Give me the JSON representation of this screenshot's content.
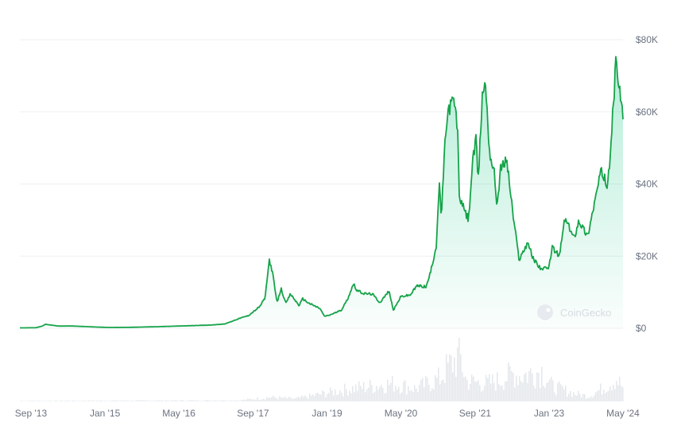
{
  "watermark": {
    "text": "CoinGecko",
    "icon": "gecko-logo-icon"
  },
  "colors": {
    "line": "#16a34a",
    "area_top": "#16c784",
    "grid": "#eceff3",
    "tick_text": "#6b7280",
    "volume": "#e5e8ec"
  },
  "chart_data": {
    "type": "area",
    "title": "",
    "xlabel": "",
    "ylabel": "",
    "grid": true,
    "y_axis_side": "right",
    "x_range": [
      "2013-06-20",
      "2024-05-01"
    ],
    "ylim": [
      0,
      80000
    ],
    "y_ticks": [
      0,
      20000,
      40000,
      60000,
      80000
    ],
    "y_tick_labels": [
      "$0",
      "$20K",
      "$40K",
      "$60K",
      "$80K"
    ],
    "x_ticks": [
      "2013-09-01",
      "2015-01-01",
      "2016-05-01",
      "2017-09-01",
      "2019-01-01",
      "2020-05-01",
      "2021-09-01",
      "2023-01-01",
      "2024-05-01"
    ],
    "x_tick_labels": [
      "Sep '13",
      "Jan '15",
      "May '16",
      "Sep '17",
      "Jan '19",
      "May '20",
      "Sep '21",
      "Jan '23",
      "May '24"
    ],
    "series": [
      {
        "values": [
          [
            "2013-06-20",
            110
          ],
          [
            "2013-10-01",
            130
          ],
          [
            "2013-11-15",
            600
          ],
          [
            "2013-12-05",
            1100
          ],
          [
            "2014-01-15",
            850
          ],
          [
            "2014-03-01",
            600
          ],
          [
            "2014-06-01",
            620
          ],
          [
            "2014-09-01",
            450
          ],
          [
            "2015-01-15",
            220
          ],
          [
            "2015-06-01",
            240
          ],
          [
            "2015-12-01",
            420
          ],
          [
            "2016-06-01",
            650
          ],
          [
            "2016-12-01",
            900
          ],
          [
            "2017-03-01",
            1200
          ],
          [
            "2017-06-01",
            2700
          ],
          [
            "2017-08-01",
            3500
          ],
          [
            "2017-09-01",
            4500
          ],
          [
            "2017-10-15",
            6000
          ],
          [
            "2017-11-20",
            8500
          ],
          [
            "2017-12-17",
            19000
          ],
          [
            "2018-01-05",
            16000
          ],
          [
            "2018-02-06",
            7000
          ],
          [
            "2018-03-05",
            11000
          ],
          [
            "2018-04-05",
            6800
          ],
          [
            "2018-05-05",
            9500
          ],
          [
            "2018-07-01",
            6300
          ],
          [
            "2018-07-25",
            8200
          ],
          [
            "2018-09-01",
            7000
          ],
          [
            "2018-11-15",
            5500
          ],
          [
            "2018-12-15",
            3300
          ],
          [
            "2019-01-15",
            3600
          ],
          [
            "2019-04-05",
            5000
          ],
          [
            "2019-05-15",
            8000
          ],
          [
            "2019-06-26",
            12500
          ],
          [
            "2019-07-15",
            10500
          ],
          [
            "2019-09-01",
            9600
          ],
          [
            "2019-10-26",
            9500
          ],
          [
            "2019-12-15",
            7100
          ],
          [
            "2020-02-12",
            10300
          ],
          [
            "2020-03-13",
            5000
          ],
          [
            "2020-05-01",
            8800
          ],
          [
            "2020-07-01",
            9200
          ],
          [
            "2020-08-15",
            11800
          ],
          [
            "2020-10-15",
            11500
          ],
          [
            "2020-11-15",
            16000
          ],
          [
            "2020-12-20",
            23000
          ],
          [
            "2021-01-08",
            40000
          ],
          [
            "2021-01-22",
            31000
          ],
          [
            "2021-02-20",
            55000
          ],
          [
            "2021-03-13",
            61000
          ],
          [
            "2021-04-14",
            63500
          ],
          [
            "2021-05-10",
            55000
          ],
          [
            "2021-05-19",
            37000
          ],
          [
            "2021-06-10",
            34000
          ],
          [
            "2021-07-20",
            30000
          ],
          [
            "2021-08-15",
            46000
          ],
          [
            "2021-09-07",
            52000
          ],
          [
            "2021-09-22",
            41000
          ],
          [
            "2021-10-20",
            66000
          ],
          [
            "2021-11-10",
            67500
          ],
          [
            "2021-12-05",
            49000
          ],
          [
            "2022-01-05",
            43000
          ],
          [
            "2022-01-24",
            34000
          ],
          [
            "2022-02-15",
            44000
          ],
          [
            "2022-03-28",
            47000
          ],
          [
            "2022-05-10",
            31000
          ],
          [
            "2022-06-18",
            19000
          ],
          [
            "2022-08-15",
            24000
          ],
          [
            "2022-09-15",
            19500
          ],
          [
            "2022-11-09",
            16500
          ],
          [
            "2022-12-30",
            16500
          ],
          [
            "2023-01-20",
            22500
          ],
          [
            "2023-03-10",
            20000
          ],
          [
            "2023-04-14",
            30500
          ],
          [
            "2023-06-15",
            25000
          ],
          [
            "2023-07-15",
            30000
          ],
          [
            "2023-09-11",
            25500
          ],
          [
            "2023-10-25",
            34500
          ],
          [
            "2023-12-08",
            43500
          ],
          [
            "2024-01-23",
            39500
          ],
          [
            "2024-02-28",
            62000
          ],
          [
            "2024-03-14",
            73000
          ],
          [
            "2024-04-01",
            69000
          ],
          [
            "2024-04-13",
            64000
          ],
          [
            "2024-05-01",
            59000
          ]
        ]
      }
    ],
    "volume_series": {
      "values": [
        [
          "2013-06-20",
          0.01
        ],
        [
          "2017-06-01",
          0.02
        ],
        [
          "2017-12-17",
          0.08
        ],
        [
          "2018-06-01",
          0.05
        ],
        [
          "2019-06-01",
          0.25
        ],
        [
          "2020-03-13",
          0.35
        ],
        [
          "2020-08-01",
          0.25
        ],
        [
          "2021-01-10",
          0.45
        ],
        [
          "2021-02-25",
          0.65
        ],
        [
          "2021-05-19",
          0.9
        ],
        [
          "2021-07-01",
          0.4
        ],
        [
          "2021-11-10",
          0.35
        ],
        [
          "2022-01-24",
          0.4
        ],
        [
          "2022-05-12",
          0.55
        ],
        [
          "2022-06-18",
          0.5
        ],
        [
          "2022-11-09",
          0.6
        ],
        [
          "2023-01-15",
          0.3
        ],
        [
          "2023-06-15",
          0.15
        ],
        [
          "2023-09-15",
          0.1
        ],
        [
          "2023-12-10",
          0.25
        ],
        [
          "2024-03-14",
          0.45
        ],
        [
          "2024-05-01",
          0.25
        ]
      ]
    }
  }
}
